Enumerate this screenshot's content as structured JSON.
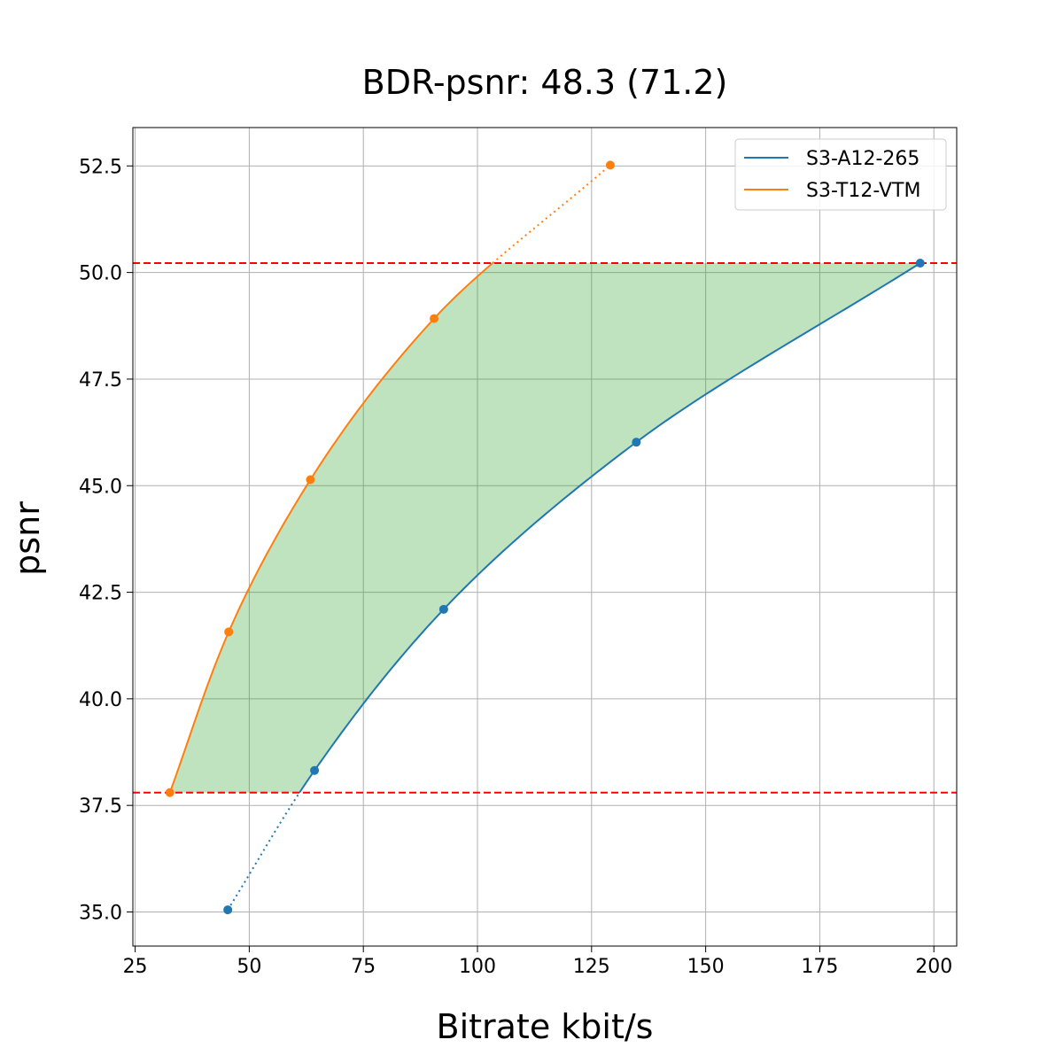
{
  "chart_data": {
    "type": "line",
    "title": "BDR-psnr: 48.3 (71.2)",
    "xlabel": "Bitrate kbit/s",
    "ylabel": "psnr",
    "xlim": [
      24.5,
      205
    ],
    "ylim": [
      34.2,
      53.4
    ],
    "xticks": [
      25,
      50,
      75,
      100,
      125,
      150,
      175,
      200
    ],
    "yticks": [
      35.0,
      37.5,
      40.0,
      42.5,
      45.0,
      47.5,
      50.0,
      52.5
    ],
    "xtick_labels": [
      "25",
      "50",
      "75",
      "100",
      "125",
      "150",
      "175",
      "200"
    ],
    "ytick_labels": [
      "35.0",
      "37.5",
      "40.0",
      "42.5",
      "45.0",
      "47.5",
      "50.0",
      "52.5"
    ],
    "grid": true,
    "legend_position": "top-right",
    "series": [
      {
        "name": "S3-A12-265",
        "color": "#1f77b4",
        "points": [
          [
            45.3,
            35.05
          ],
          [
            64.3,
            38.32
          ],
          [
            92.6,
            42.1
          ],
          [
            134.8,
            46.02
          ],
          [
            197.0,
            50.22
          ]
        ]
      },
      {
        "name": "S3-T12-VTM",
        "color": "#ff7f0e",
        "points": [
          [
            32.6,
            37.8
          ],
          [
            45.5,
            41.57
          ],
          [
            63.4,
            45.14
          ],
          [
            90.5,
            48.92
          ],
          [
            129.1,
            52.52
          ]
        ]
      }
    ],
    "reference_lines": [
      {
        "y": 37.8,
        "color": "#ff0000",
        "style": "dashed"
      },
      {
        "y": 50.22,
        "color": "#ff0000",
        "style": "dashed"
      }
    ],
    "fill_color": "#2ca02c",
    "fill_opacity": 0.3
  }
}
